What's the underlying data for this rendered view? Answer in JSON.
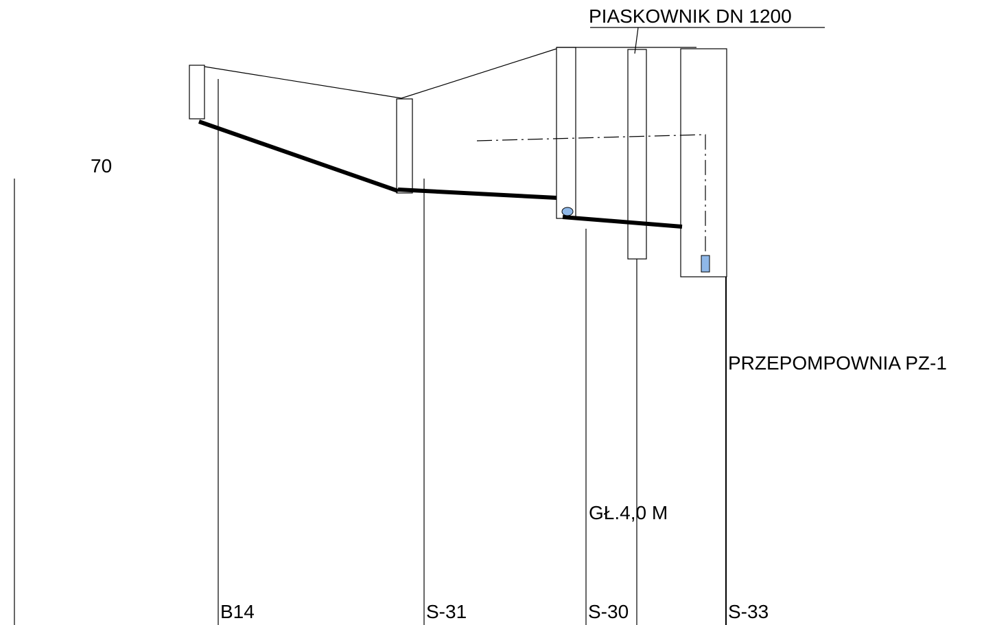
{
  "labels": {
    "piaskownik": "PIASKOWNIK  DN 1200",
    "elevation": "70",
    "pump_station": "PRZEPOMPOWNIA  PZ-1",
    "depth": "GŁ.4,0 M"
  },
  "stations": [
    "B14",
    "S-31",
    "S-30",
    "S-33"
  ]
}
